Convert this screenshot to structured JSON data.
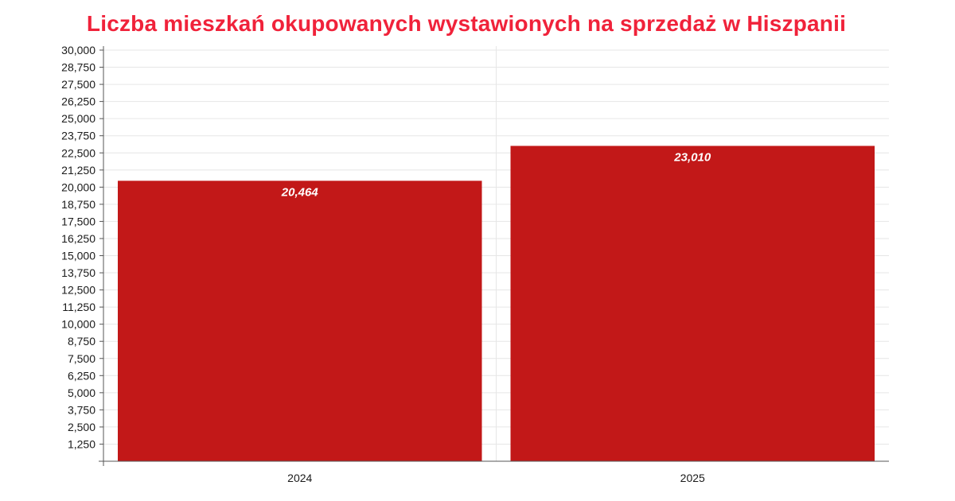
{
  "chart_data": {
    "type": "bar",
    "title": "Liczba mieszkań okupowanych wystawionych na sprzedaż w Hiszpanii",
    "categories": [
      "2024",
      "2025"
    ],
    "values": [
      20464,
      23010
    ],
    "data_labels": [
      "20,464",
      "23,010"
    ],
    "xlabel": "",
    "ylabel": "",
    "ylim": [
      0,
      30000
    ],
    "yticks": [
      1250,
      2500,
      3750,
      5000,
      6250,
      7500,
      8750,
      10000,
      11250,
      12500,
      13750,
      15000,
      16250,
      17500,
      18750,
      20000,
      21250,
      22500,
      23750,
      25000,
      26250,
      27500,
      28750,
      30000
    ],
    "ytick_labels": [
      "1,250",
      "2,500",
      "3,750",
      "5,000",
      "6,250",
      "7,500",
      "8,750",
      "10,000",
      "11,250",
      "12,500",
      "13,750",
      "15,000",
      "16,250",
      "17,500",
      "18,750",
      "20,000",
      "21,250",
      "22,500",
      "23,750",
      "25,000",
      "26,250",
      "27,500",
      "28,750",
      "30,000"
    ],
    "grid": true,
    "legend": "none",
    "colors": {
      "bar": "#c21818",
      "title": "#f0223a",
      "grid": "#e6e6e6",
      "axis": "#555555"
    }
  }
}
